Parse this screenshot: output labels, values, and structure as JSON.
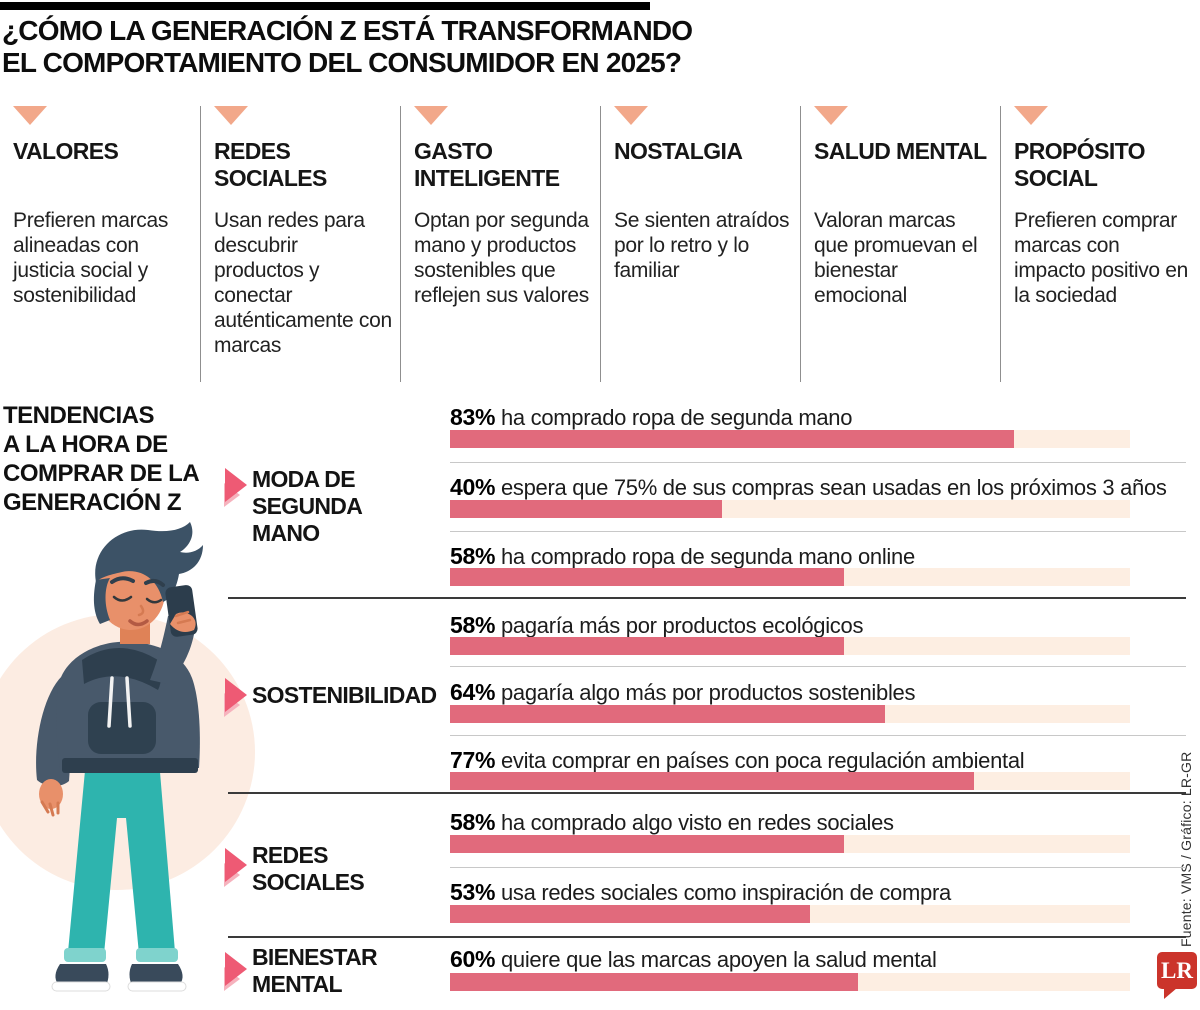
{
  "page": {
    "title_lines": [
      "¿CÓMO LA GENERACIÓN Z ESTÁ TRANSFORMANDO",
      "EL COMPORTAMIENTO DEL CONSUMIDOR EN 2025?"
    ]
  },
  "factors": [
    {
      "title": "VALORES",
      "desc": "Prefieren marcas alineadas con justicia social y sostenibilidad"
    },
    {
      "title": "REDES SOCIALES",
      "desc": "Usan redes para descubrir productos y conectar auténticamente con marcas"
    },
    {
      "title": "GASTO INTELIGENTE",
      "desc": "Optan por segunda mano y productos sostenibles que reflejen sus valores"
    },
    {
      "title": "NOSTALGIA",
      "desc": "Se sienten atraídos por lo retro y lo familiar"
    },
    {
      "title": "SALUD MENTAL",
      "desc": "Valoran marcas que promuevan el bienestar emocional"
    },
    {
      "title": "PROPÓSITO SOCIAL",
      "desc": "Prefieren comprar marcas con impacto positivo en la sociedad"
    }
  ],
  "trends": {
    "heading_lines": [
      "TENDENCIAS",
      "A LA HORA DE",
      "COMPRAR DE LA",
      "GENERACIÓN Z"
    ],
    "groups": [
      {
        "label_lines": [
          "MODA DE",
          "SEGUNDA",
          "MANO"
        ],
        "stats": [
          {
            "value": 83,
            "pct_label": "83%",
            "text": "ha comprado ropa de segunda mano"
          },
          {
            "value": 40,
            "pct_label": "40%",
            "text": "espera que 75% de sus compras sean usadas en los próximos 3 años"
          },
          {
            "value": 58,
            "pct_label": "58%",
            "text": "ha comprado ropa de segunda mano online"
          }
        ]
      },
      {
        "label_lines": [
          "SOSTENIBILIDAD"
        ],
        "stats": [
          {
            "value": 58,
            "pct_label": "58%",
            "text": "pagaría más por productos ecológicos"
          },
          {
            "value": 64,
            "pct_label": "64%",
            "text": "pagaría algo más por productos sostenibles"
          },
          {
            "value": 77,
            "pct_label": "77%",
            "text": "evita comprar en países con poca regulación ambiental"
          }
        ]
      },
      {
        "label_lines": [
          "REDES",
          "SOCIALES"
        ],
        "stats": [
          {
            "value": 58,
            "pct_label": "58%",
            "text": "ha comprado algo visto en redes sociales"
          },
          {
            "value": 53,
            "pct_label": "53%",
            "text": "usa redes sociales como inspiración de compra"
          }
        ]
      },
      {
        "label_lines": [
          "BIENESTAR",
          "MENTAL"
        ],
        "stats": [
          {
            "value": 60,
            "pct_label": "60%",
            "text": "quiere que las marcas apoyen la salud mental"
          }
        ]
      }
    ]
  },
  "chart_data": {
    "type": "bar",
    "title": "Tendencias a la hora de comprar de la Generación Z",
    "unit": "%",
    "xlim": [
      0,
      100
    ],
    "groups": [
      {
        "group": "Moda de segunda mano",
        "items": [
          {
            "label": "ha comprado ropa de segunda mano",
            "value": 83
          },
          {
            "label": "espera que 75% de sus compras sean usadas en los próximos 3 años",
            "value": 40
          },
          {
            "label": "ha comprado ropa de segunda mano online",
            "value": 58
          }
        ]
      },
      {
        "group": "Sostenibilidad",
        "items": [
          {
            "label": "pagaría más por productos ecológicos",
            "value": 58
          },
          {
            "label": "pagaría algo más por productos sostenibles",
            "value": 64
          },
          {
            "label": "evita comprar en países con poca regulación ambiental",
            "value": 77
          }
        ]
      },
      {
        "group": "Redes sociales",
        "items": [
          {
            "label": "ha comprado algo visto en redes sociales",
            "value": 58
          },
          {
            "label": "usa redes sociales como inspiración de compra",
            "value": 53
          }
        ]
      },
      {
        "group": "Bienestar mental",
        "items": [
          {
            "label": "quiere que las marcas apoyen la salud mental",
            "value": 60
          }
        ]
      }
    ]
  },
  "footer": {
    "source": "Fuente: VMS / Gráfico: LR-GR",
    "logo_text": "LR"
  },
  "colors": {
    "bar_fill": "#e16a7c",
    "bar_track": "#fdeee2",
    "header_triangle": "#f2a88a",
    "group_marker": "#ee5a74",
    "logo_red": "#cb342b",
    "pants_teal": "#2eb4ae",
    "hoodie_slate": "#48596b"
  }
}
